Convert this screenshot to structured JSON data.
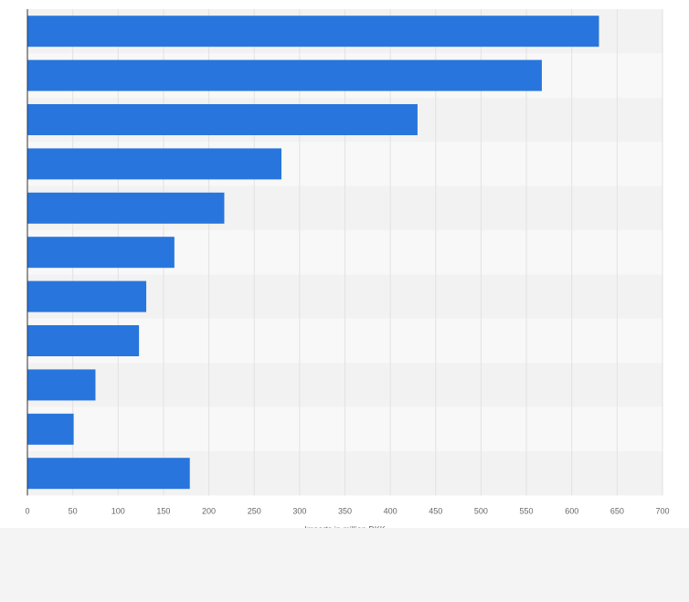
{
  "chart_data": {
    "type": "bar",
    "orientation": "horizontal",
    "title": "",
    "xlabel": "Imports in million DKK",
    "ylabel": "",
    "categories": [
      "",
      "",
      "",
      "",
      "",
      "",
      "",
      "",
      "",
      "",
      ""
    ],
    "values": [
      630,
      567,
      430,
      280,
      217,
      162,
      131,
      123,
      75,
      51,
      179
    ],
    "xlim": [
      0,
      700
    ],
    "xticks": [
      0,
      50,
      100,
      150,
      200,
      250,
      300,
      350,
      400,
      450,
      500,
      550,
      600,
      650,
      700
    ],
    "grid": true,
    "legend": "none"
  },
  "colors": {
    "bar": "#2876dd",
    "band_a": "#f2f2f2",
    "band_b": "#f8f8f8",
    "grid": "#e2e2e2",
    "axis": "#333333"
  }
}
